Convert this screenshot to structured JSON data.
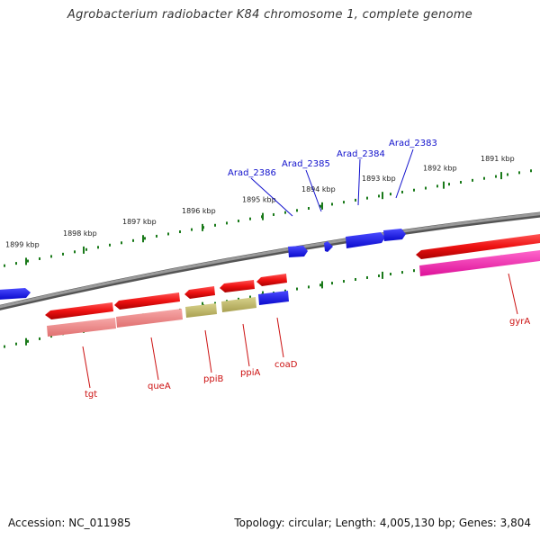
{
  "title": "Agrobacterium radiobacter K84 chromosome 1, complete genome",
  "footer": {
    "accession": "Accession: NC_011985",
    "summary": "Topology: circular; Length: 4,005,130 bp; Genes: 3,804"
  },
  "ticks": [
    {
      "label": "1899 kbp"
    },
    {
      "label": "1898 kbp"
    },
    {
      "label": "1897 kbp"
    },
    {
      "label": "1896 kbp"
    },
    {
      "label": "1895 kbp"
    },
    {
      "label": "1894 kbp"
    },
    {
      "label": "1893 kbp"
    },
    {
      "label": "1892 kbp"
    },
    {
      "label": "1891 kbp"
    }
  ],
  "genes_top": [
    {
      "label": "Arad_2386",
      "color": "#1010cc"
    },
    {
      "label": "Arad_2385",
      "color": "#1010cc"
    },
    {
      "label": "Arad_2384",
      "color": "#1010cc"
    },
    {
      "label": "Arad_2383",
      "color": "#1010cc"
    }
  ],
  "genes_bottom": [
    {
      "label": "tgt",
      "color": "#cc1111"
    },
    {
      "label": "queA",
      "color": "#cc1111"
    },
    {
      "label": "ppiB",
      "color": "#cc1111"
    },
    {
      "label": "ppiA",
      "color": "#cc1111"
    },
    {
      "label": "coaD",
      "color": "#cc1111"
    },
    {
      "label": "gyrA",
      "color": "#cc1111"
    }
  ],
  "colors": {
    "backbone": "#888888",
    "tick": "#1a7a1a",
    "cds": "#ee1111",
    "cds_gene_row": "#f08080",
    "cds_gene_row_alt": "#b8b060",
    "cds_gene_row_gyr": "#ee22aa",
    "plus_strand": "#1a1aee"
  }
}
